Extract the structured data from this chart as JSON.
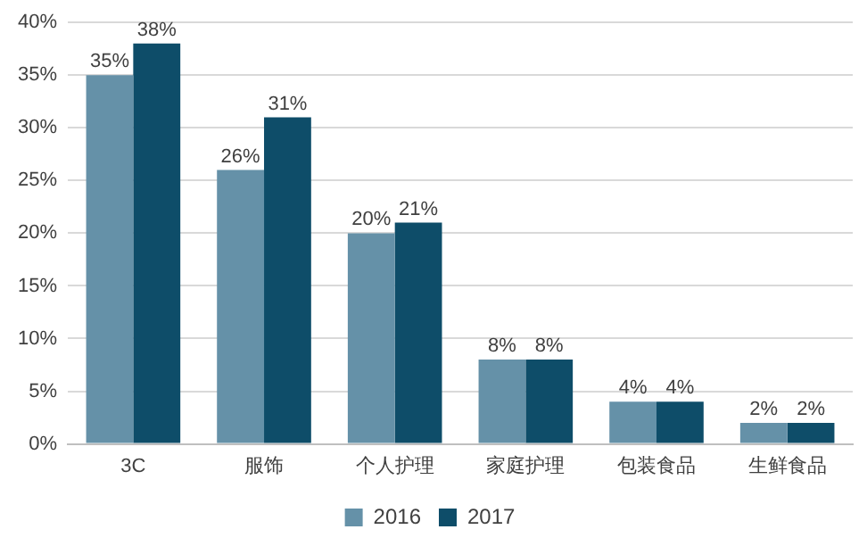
{
  "chart_data": {
    "type": "bar",
    "categories": [
      "3C",
      "服饰",
      "个人护理",
      "家庭护理",
      "包装食品",
      "生鲜食品"
    ],
    "series": [
      {
        "name": "2016",
        "color": "#6591a8",
        "values": [
          35,
          26,
          20,
          8,
          4,
          2
        ],
        "value_labels": [
          "35%",
          "26%",
          "20%",
          "8%",
          "4%",
          "2%"
        ]
      },
      {
        "name": "2017",
        "color": "#0e4d69",
        "values": [
          38,
          31,
          21,
          8,
          4,
          2
        ],
        "value_labels": [
          "38%",
          "31%",
          "21%",
          "8%",
          "4%",
          "2%"
        ]
      }
    ],
    "ylim": [
      0,
      40
    ],
    "yticks": [
      {
        "value": 0,
        "label": "0%"
      },
      {
        "value": 5,
        "label": "5%"
      },
      {
        "value": 10,
        "label": "10%"
      },
      {
        "value": 15,
        "label": "15%"
      },
      {
        "value": 20,
        "label": "20%"
      },
      {
        "value": 25,
        "label": "25%"
      },
      {
        "value": 30,
        "label": "30%"
      },
      {
        "value": 35,
        "label": "35%"
      },
      {
        "value": 40,
        "label": "40%"
      }
    ],
    "grid": "y",
    "legend": "bottom"
  }
}
